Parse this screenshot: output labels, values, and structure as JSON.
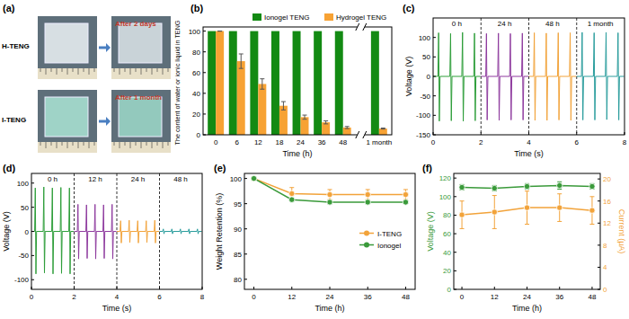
{
  "chart_data": [
    {
      "type": "image",
      "title": "(a)",
      "annotations": [
        "H-TENG",
        "After 2 days",
        "I-TENG",
        "After 1 month"
      ]
    },
    {
      "type": "bar",
      "title": "(b)",
      "xlabel": "Time (h)",
      "ylabel": "The content of water or ionic liquid in TENG",
      "categories": [
        "0",
        "6",
        "12",
        "18",
        "24",
        "36",
        "48",
        "1 month"
      ],
      "series": [
        {
          "name": "Ionogel TENG",
          "color": "#138a13",
          "values": [
            100,
            100,
            100,
            100,
            100,
            100,
            100,
            100
          ]
        },
        {
          "name": "Hydrogel TENG",
          "color": "#f7a234",
          "values": [
            100,
            71,
            49,
            28,
            17,
            12,
            7,
            6
          ],
          "errors": [
            0,
            7,
            5,
            4,
            2,
            1.5,
            1,
            0.5
          ]
        }
      ],
      "ylim": [
        0,
        104
      ],
      "yticks": [
        0,
        20,
        40,
        60,
        80,
        100
      ],
      "legend": "top"
    },
    {
      "type": "line",
      "title": "(c)",
      "xlabel": "Time (s)",
      "ylabel": "Voltage (V)",
      "xlim": [
        0,
        8
      ],
      "xticks": [
        0,
        2,
        4,
        6,
        8
      ],
      "ylim": [
        -150,
        150
      ],
      "yticks": [
        -150,
        -100,
        -50,
        0,
        50,
        100
      ],
      "series": [
        {
          "name": "0 h",
          "color": "#2e9e3a",
          "x": [
            0,
            0.2,
            0.23,
            0.26,
            0.29,
            0.7,
            0.73,
            0.76,
            0.79,
            1.2,
            1.23,
            1.26,
            1.29,
            1.7,
            1.73,
            1.76,
            1.79,
            1.98
          ],
          "values": [
            0,
            0,
            112,
            -115,
            0,
            0,
            110,
            -114,
            0,
            0,
            113,
            -115,
            0,
            0,
            111,
            -114,
            0,
            0
          ]
        },
        {
          "name": "24 h",
          "color": "#8e3a9e",
          "x": [
            2,
            2.2,
            2.23,
            2.26,
            2.29,
            2.7,
            2.73,
            2.76,
            2.79,
            3.2,
            3.23,
            3.26,
            3.29,
            3.7,
            3.73,
            3.76,
            3.79,
            3.98
          ],
          "values": [
            0,
            0,
            110,
            -112,
            0,
            0,
            111,
            -113,
            0,
            0,
            110,
            -112,
            0,
            0,
            111,
            -112,
            0,
            0
          ]
        },
        {
          "name": "48 h",
          "color": "#f2a33a",
          "x": [
            4,
            4.2,
            4.23,
            4.26,
            4.29,
            4.7,
            4.73,
            4.76,
            4.79,
            5.2,
            5.23,
            5.26,
            5.29,
            5.7,
            5.73,
            5.76,
            5.79,
            5.98
          ],
          "values": [
            0,
            0,
            112,
            -113,
            0,
            0,
            111,
            -113,
            0,
            0,
            112,
            -112,
            0,
            0,
            112,
            -113,
            0,
            0
          ]
        },
        {
          "name": "1 month",
          "color": "#2a9d9d",
          "x": [
            6,
            6.2,
            6.23,
            6.26,
            6.29,
            6.7,
            6.73,
            6.76,
            6.79,
            7.2,
            7.23,
            7.26,
            7.29,
            7.7,
            7.73,
            7.76,
            7.79,
            7.98
          ],
          "values": [
            0,
            0,
            113,
            -112,
            0,
            0,
            112,
            -112,
            0,
            0,
            113,
            -111,
            0,
            0,
            112,
            -112,
            0,
            0
          ]
        }
      ]
    },
    {
      "type": "line",
      "title": "(d)",
      "xlabel": "Time (s)",
      "ylabel": "Voltage (V)",
      "xlim": [
        0,
        8
      ],
      "xticks": [
        0,
        2,
        4,
        6,
        8
      ],
      "ylim": [
        -120,
        120
      ],
      "yticks": [
        -100,
        -50,
        0,
        50,
        100
      ],
      "series": [
        {
          "name": "0 h",
          "color": "#2e9e3a",
          "x": [
            0,
            0.15,
            0.18,
            0.21,
            0.24,
            0.55,
            0.58,
            0.61,
            0.64,
            0.95,
            0.98,
            1.01,
            1.04,
            1.35,
            1.38,
            1.41,
            1.44,
            1.75,
            1.78,
            1.81,
            1.84,
            1.98
          ],
          "values": [
            0,
            0,
            90,
            -88,
            0,
            0,
            92,
            -86,
            0,
            0,
            90,
            -88,
            0,
            0,
            91,
            -87,
            0,
            0,
            90,
            -88,
            0,
            0
          ]
        },
        {
          "name": "12 h",
          "color": "#8e3a9e",
          "x": [
            2,
            2.15,
            2.18,
            2.21,
            2.24,
            2.55,
            2.58,
            2.61,
            2.64,
            2.95,
            2.98,
            3.01,
            3.04,
            3.35,
            3.38,
            3.41,
            3.44,
            3.75,
            3.78,
            3.81,
            3.84,
            3.98
          ],
          "values": [
            0,
            0,
            56,
            -57,
            0,
            0,
            55,
            -56,
            0,
            0,
            56,
            -57,
            0,
            0,
            55,
            -56,
            0,
            0,
            56,
            -57,
            0,
            0
          ]
        },
        {
          "name": "24 h",
          "color": "#f2a33a",
          "x": [
            4,
            4.15,
            4.18,
            4.21,
            4.24,
            4.55,
            4.58,
            4.61,
            4.64,
            4.95,
            4.98,
            5.01,
            5.04,
            5.35,
            5.38,
            5.41,
            5.44,
            5.75,
            5.78,
            5.81,
            5.84,
            5.98
          ],
          "values": [
            0,
            0,
            22,
            -24,
            0,
            0,
            23,
            -23,
            0,
            0,
            22,
            -24,
            0,
            0,
            22,
            -23,
            0,
            0,
            23,
            -24,
            0,
            0
          ]
        },
        {
          "name": "48 h",
          "color": "#2a9d9d",
          "x": [
            6,
            6.15,
            6.18,
            6.21,
            6.24,
            6.55,
            6.58,
            6.61,
            6.64,
            6.95,
            6.98,
            7.01,
            7.04,
            7.35,
            7.38,
            7.41,
            7.44,
            7.75,
            7.78,
            7.81,
            7.84,
            7.98
          ],
          "values": [
            0,
            0,
            5,
            -5,
            0,
            0,
            5,
            -5,
            0,
            0,
            5,
            -5,
            0,
            0,
            5,
            -5,
            0,
            0,
            5,
            -5,
            0,
            0
          ]
        }
      ]
    },
    {
      "type": "line",
      "title": "(e)",
      "xlabel": "Time (h)",
      "ylabel": "Weight Retention (%)",
      "x": [
        0,
        12,
        24,
        36,
        48
      ],
      "xlim": [
        -3,
        51
      ],
      "xticks": [
        0,
        12,
        24,
        36,
        48
      ],
      "ylim": [
        78,
        101
      ],
      "yticks": [
        80,
        85,
        90,
        95,
        100
      ],
      "marker": "circle",
      "legend": "center right",
      "series": [
        {
          "name": "I-TENG",
          "color": "#f2a33a",
          "values": [
            100,
            97,
            96.8,
            96.8,
            96.8
          ],
          "errors": [
            0,
            1.2,
            1,
            1,
            1
          ]
        },
        {
          "name": "Ionogel",
          "color": "#3a9a3a",
          "values": [
            100,
            95.8,
            95.3,
            95.3,
            95.3
          ]
        }
      ]
    },
    {
      "type": "line",
      "title": "(f)",
      "xlabel": "Time (h)",
      "ylabel": "Voltage (V)",
      "y2label": "Current (μA)",
      "x": [
        0,
        12,
        24,
        36,
        48
      ],
      "xlim": [
        -3,
        51
      ],
      "xticks": [
        0,
        12,
        24,
        36,
        48
      ],
      "ylim": [
        0,
        125
      ],
      "yticks": [
        0,
        20,
        40,
        60,
        80,
        100,
        120
      ],
      "y2lim": [
        0,
        21
      ],
      "y2ticks": [
        0,
        4,
        8,
        12,
        16,
        20
      ],
      "marker": "circle",
      "series": [
        {
          "color": "#3a9a3a",
          "values": [
            110,
            109,
            111,
            112,
            111
          ],
          "errors": [
            3,
            3,
            3,
            4,
            3
          ]
        },
        {
          "color": "#f2a33a",
          "axis": "y2",
          "values": [
            13.5,
            14,
            14.8,
            14.8,
            14.3
          ],
          "errors": [
            2.5,
            3,
            3,
            2.5,
            2.5
          ]
        }
      ]
    }
  ]
}
